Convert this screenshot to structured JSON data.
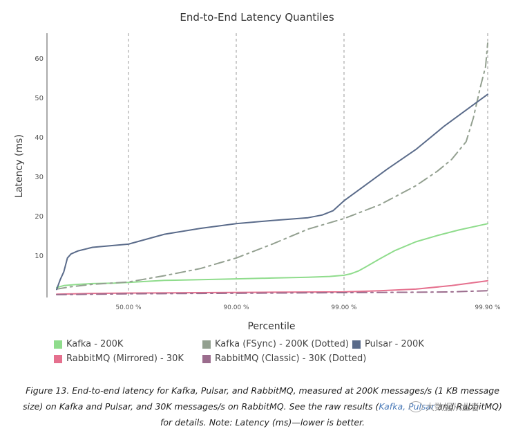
{
  "chart_data": {
    "type": "line",
    "title": "End-to-End Latency Quantiles",
    "xlabel": "Percentile",
    "ylabel": "Latency (ms)",
    "x_ticks": [
      "50.00 %",
      "90.00 %",
      "99.00 %",
      "99.90 %"
    ],
    "y_ticks": [
      10,
      20,
      30,
      40,
      50,
      60
    ],
    "ylim": [
      0,
      66
    ],
    "grid": "vertical dashed lines at percentile ticks",
    "legend_position": "bottom",
    "series": [
      {
        "name": "Kafka - 200K",
        "color": "#8fdc8c",
        "style": "solid",
        "points": [
          [
            0,
            2
          ],
          [
            0.1,
            2.5
          ],
          [
            0.3,
            2.8
          ],
          [
            0.5,
            3
          ],
          [
            0.8,
            3.1
          ],
          [
            1,
            3.3
          ],
          [
            1.5,
            3.8
          ],
          [
            2,
            4
          ],
          [
            2.5,
            4.2
          ],
          [
            3,
            4.4
          ],
          [
            3.5,
            4.6
          ],
          [
            3.8,
            4.8
          ],
          [
            4,
            5.1
          ],
          [
            4.1,
            5.5
          ],
          [
            4.2,
            6.2
          ],
          [
            4.3,
            7.2
          ],
          [
            4.5,
            9.3
          ],
          [
            4.7,
            11.3
          ],
          [
            5,
            13.6
          ],
          [
            5.3,
            15.2
          ],
          [
            5.6,
            16.6
          ],
          [
            6,
            18.2
          ]
        ]
      },
      {
        "name": "Kafka (FSync) - 200K (Dotted)",
        "color": "#93a090",
        "style": "dashdot",
        "points": [
          [
            0,
            1.6
          ],
          [
            0.2,
            2.2
          ],
          [
            0.5,
            2.8
          ],
          [
            1,
            3.4
          ],
          [
            1.5,
            5
          ],
          [
            2,
            6.8
          ],
          [
            2.5,
            9.5
          ],
          [
            3,
            13
          ],
          [
            3.5,
            16.8
          ],
          [
            4,
            19.5
          ],
          [
            4.5,
            23
          ],
          [
            5,
            27.8
          ],
          [
            5.3,
            31.5
          ],
          [
            5.5,
            34.5
          ],
          [
            5.7,
            39
          ],
          [
            5.8,
            45
          ],
          [
            5.9,
            53
          ],
          [
            5.97,
            58
          ],
          [
            6,
            64
          ]
        ]
      },
      {
        "name": "Pulsar - 200K",
        "color": "#5a6b8a",
        "style": "solid",
        "points": [
          [
            0,
            1.5
          ],
          [
            0.05,
            4
          ],
          [
            0.1,
            6
          ],
          [
            0.15,
            9.5
          ],
          [
            0.2,
            10.5
          ],
          [
            0.3,
            11.3
          ],
          [
            0.5,
            12.2
          ],
          [
            1,
            13
          ],
          [
            1.5,
            15.5
          ],
          [
            2,
            17
          ],
          [
            2.5,
            18.2
          ],
          [
            3,
            19
          ],
          [
            3.5,
            19.7
          ],
          [
            3.7,
            20.4
          ],
          [
            3.85,
            21.5
          ],
          [
            4,
            24
          ],
          [
            4.3,
            28
          ],
          [
            4.6,
            32
          ],
          [
            5,
            37
          ],
          [
            5.4,
            43
          ],
          [
            5.7,
            47
          ],
          [
            6,
            51
          ]
        ]
      },
      {
        "name": "RabbitMQ (Mirrored) - 30K",
        "color": "#e5708e",
        "style": "solid",
        "points": [
          [
            0,
            0.3
          ],
          [
            0.5,
            0.5
          ],
          [
            1,
            0.6
          ],
          [
            2,
            0.7
          ],
          [
            3,
            0.8
          ],
          [
            4,
            0.9
          ],
          [
            4.5,
            1.2
          ],
          [
            5,
            1.6
          ],
          [
            5.5,
            2.5
          ],
          [
            6,
            3.7
          ]
        ]
      },
      {
        "name": "RabbitMQ (Classic) - 30K (Dotted)",
        "color": "#9b6c8d",
        "style": "dashdot",
        "points": [
          [
            0,
            0.2
          ],
          [
            1,
            0.4
          ],
          [
            2,
            0.5
          ],
          [
            3,
            0.6
          ],
          [
            4,
            0.7
          ],
          [
            5,
            0.8
          ],
          [
            5.5,
            0.9
          ],
          [
            6,
            1.2
          ]
        ]
      }
    ]
  },
  "caption": {
    "line1": "Figure 13. End-to-end latency for Kafka, Pulsar, and RabbitMQ, measured at 200K messages/s (1 KB message",
    "line2_a": "size) on Kafka and Pulsar, and 30K messages/s on RabbitMQ. See the raw results (",
    "line2_link": "Kafka, Pulsar",
    "line2_b": "and RabbitMQ)",
    "line3": "for details. Note: Latency (ms)—lower is better."
  },
  "watermark": "大数据从业者"
}
